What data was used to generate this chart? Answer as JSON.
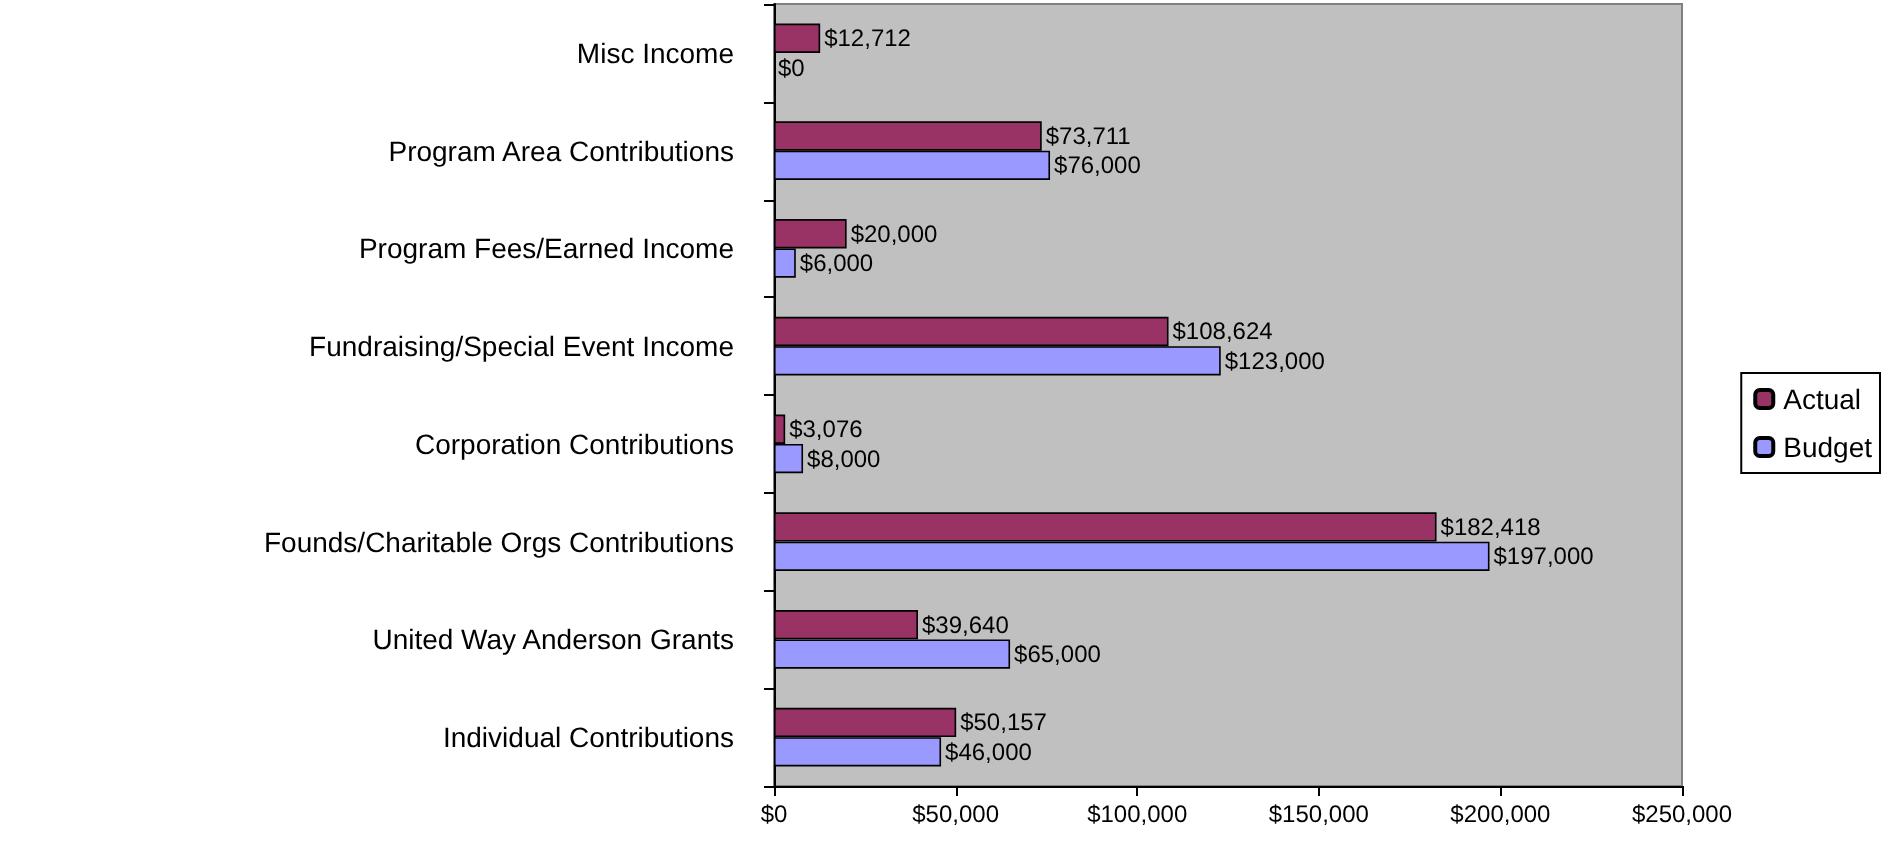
{
  "chart_data": {
    "type": "bar",
    "orientation": "horizontal",
    "categories": [
      "Misc Income",
      "Program Area Contributions",
      "Program Fees/Earned Income",
      "Fundraising/Special Event Income",
      "Corporation Contributions",
      "Founds/Charitable Orgs Contributions",
      "United Way Anderson Grants",
      "Individual Contributions"
    ],
    "series": [
      {
        "name": "Actual",
        "color": "#993366",
        "values": [
          12712,
          73711,
          20000,
          108624,
          3076,
          182418,
          39640,
          50157
        ],
        "value_labels": [
          "$12,712",
          "$73,711",
          "$20,000",
          "$108,624",
          "$3,076",
          "$182,418",
          "$39,640",
          "$50,157"
        ]
      },
      {
        "name": "Budget",
        "color": "#9999ff",
        "values": [
          0,
          76000,
          6000,
          123000,
          8000,
          197000,
          65000,
          46000
        ],
        "value_labels": [
          "$0",
          "$76,000",
          "$6,000",
          "$123,000",
          "$8,000",
          "$197,000",
          "$65,000",
          "$46,000"
        ]
      }
    ],
    "xlim": [
      0,
      250000
    ],
    "xticks": [
      {
        "value": 0,
        "label": "$0"
      },
      {
        "value": 50000,
        "label": "$50,000"
      },
      {
        "value": 100000,
        "label": "$100,000"
      },
      {
        "value": 150000,
        "label": "$150,000"
      },
      {
        "value": 200000,
        "label": "$200,000"
      },
      {
        "value": 250000,
        "label": "$250,000"
      }
    ],
    "grid": false,
    "legend": "right"
  }
}
